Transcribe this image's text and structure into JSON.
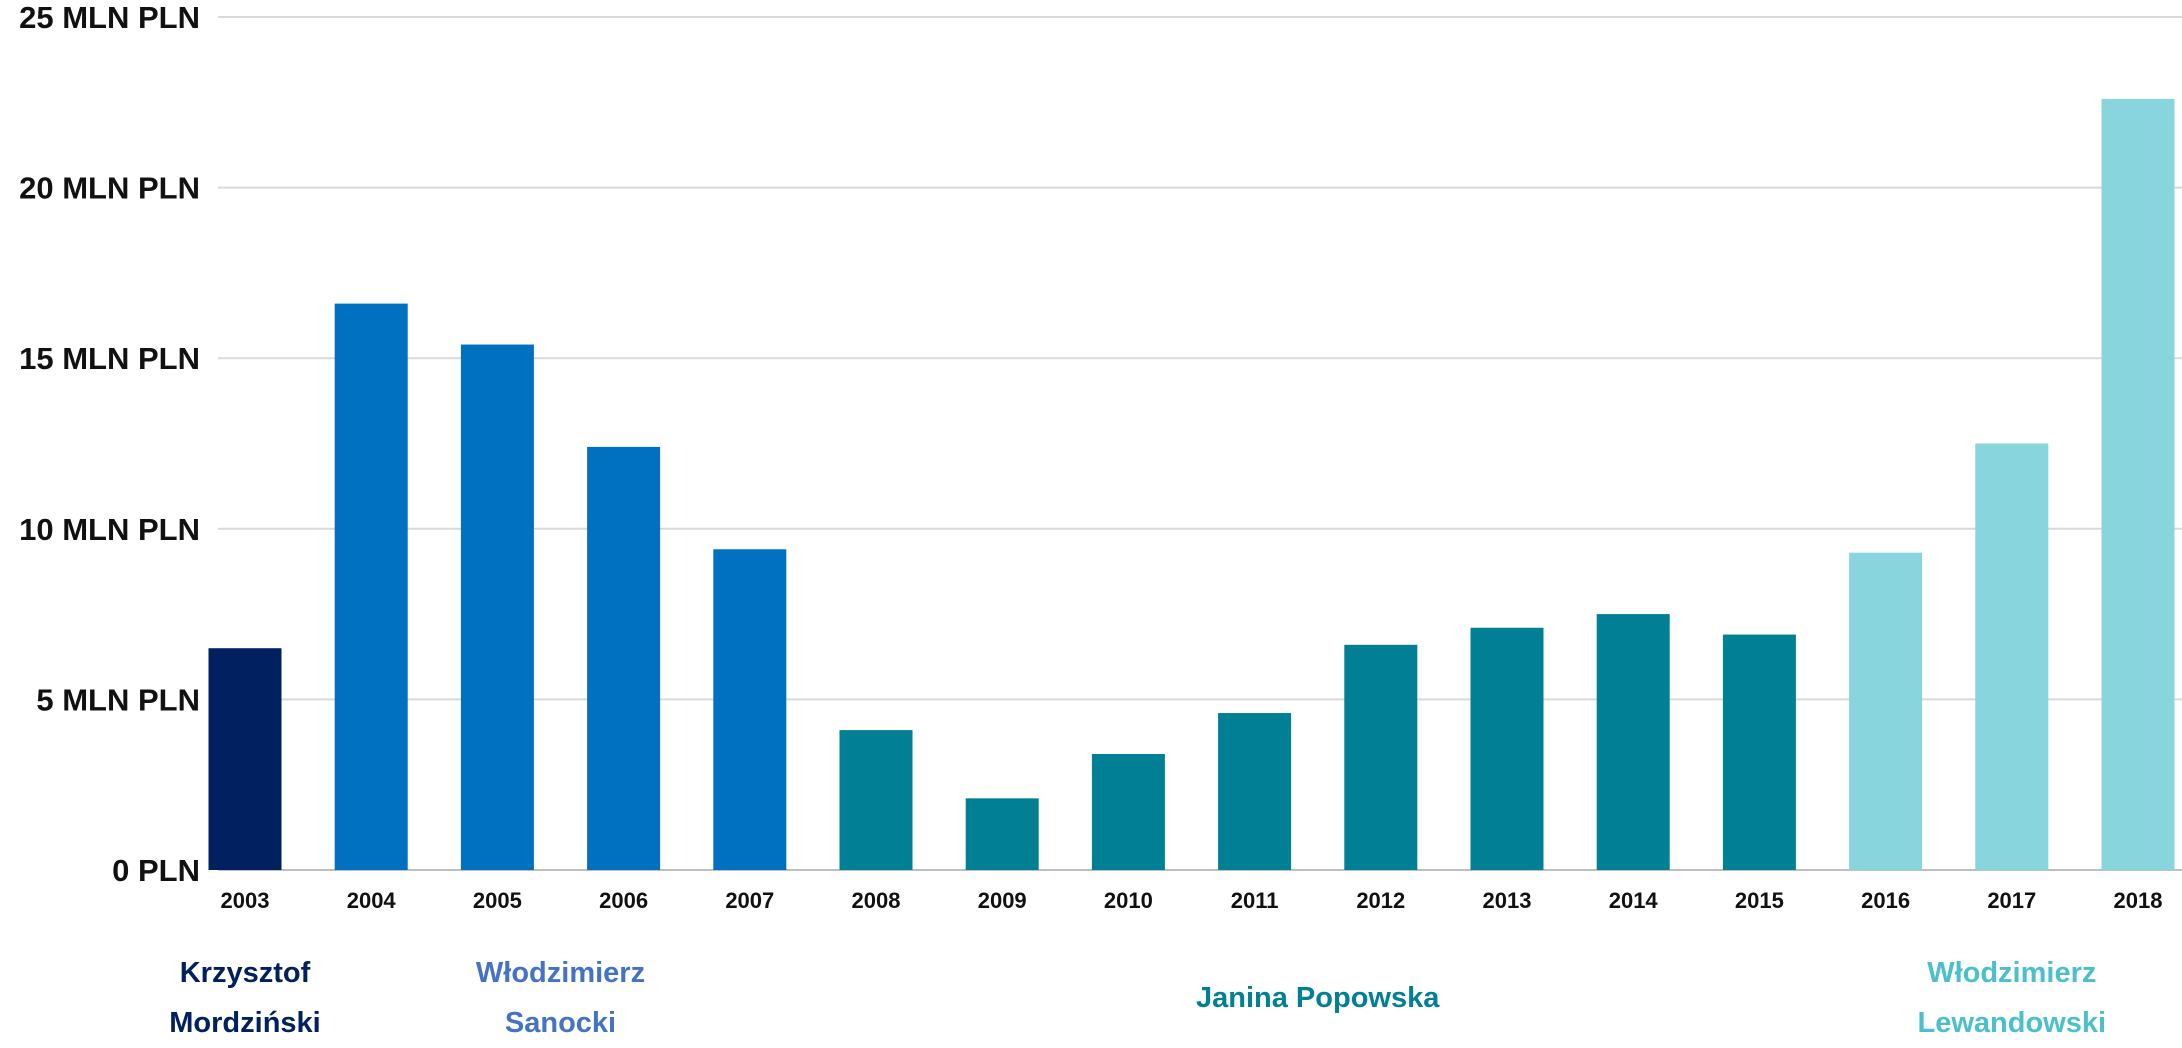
{
  "chart_data": {
    "type": "bar",
    "title": "",
    "xlabel": "",
    "ylabel": "",
    "ylim": [
      0,
      25
    ],
    "grid": true,
    "categories": [
      "2003",
      "2004",
      "2005",
      "2006",
      "2007",
      "2008",
      "2009",
      "2010",
      "2011",
      "2012",
      "2013",
      "2014",
      "2015",
      "2016",
      "2017",
      "2018"
    ],
    "values": [
      6.5,
      16.6,
      15.4,
      12.4,
      9.4,
      4.1,
      2.1,
      3.4,
      4.6,
      6.6,
      7.1,
      7.5,
      6.9,
      9.3,
      12.5,
      22.6
    ],
    "y_ticks": [
      {
        "value": 0,
        "label": "0 PLN"
      },
      {
        "value": 5,
        "label": "5 MLN PLN"
      },
      {
        "value": 10,
        "label": "10 MLN PLN"
      },
      {
        "value": 15,
        "label": "15 MLN PLN"
      },
      {
        "value": 20,
        "label": "20 MLN PLN"
      },
      {
        "value": 25,
        "label": "25 MLN PLN"
      }
    ],
    "groups": [
      {
        "name_lines": [
          "Krzysztof",
          "Mordziński"
        ],
        "first": 0,
        "last": 0,
        "color": "#002060",
        "label_color": "#002060"
      },
      {
        "name_lines": [
          "Włodzimierz",
          "Sanocki"
        ],
        "first": 1,
        "last": 4,
        "color": "#0070C0",
        "label_color": "#4472C4"
      },
      {
        "name_lines": [
          "Janina Popowska"
        ],
        "first": 5,
        "last": 12,
        "color": "#007F95",
        "label_color": "#007F95"
      },
      {
        "name_lines": [
          "Włodzimierz",
          "Lewandowski"
        ],
        "first": 13,
        "last": 15,
        "color": "#88D5DD",
        "label_color": "#4BBFCB"
      }
    ],
    "colors": {
      "grid": "#D9D9D9",
      "axis": "#BFBFBF",
      "text": "#111111"
    }
  }
}
